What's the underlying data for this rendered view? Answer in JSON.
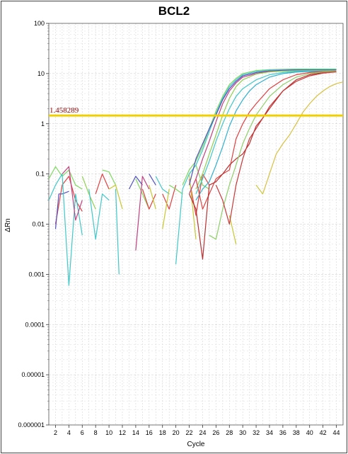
{
  "chart_data": {
    "type": "line",
    "title": "BCL2",
    "xlabel": "Cycle",
    "ylabel": "ΔRn",
    "y_scale": "log",
    "xlim": [
      1,
      45
    ],
    "ylim": [
      1e-06,
      100
    ],
    "x_ticks": [
      2,
      4,
      6,
      8,
      10,
      12,
      14,
      16,
      18,
      20,
      22,
      24,
      26,
      28,
      30,
      32,
      34,
      36,
      38,
      40,
      42,
      44
    ],
    "y_ticks": [
      {
        "value": 1e-06,
        "label": "0.000001"
      },
      {
        "value": 1e-05,
        "label": "0.00001"
      },
      {
        "value": 0.0001,
        "label": "0.0001"
      },
      {
        "value": 0.001,
        "label": "0.001"
      },
      {
        "value": 0.01,
        "label": "0.01"
      },
      {
        "value": 0.1,
        "label": "0.1"
      },
      {
        "value": 1,
        "label": "1"
      },
      {
        "value": 10,
        "label": "10"
      },
      {
        "value": 100,
        "label": "100"
      }
    ],
    "grid": true,
    "threshold": {
      "value": 1.458289,
      "label": "1.458289",
      "color": "#f0d000"
    },
    "series": [
      {
        "color": "#7fd860",
        "points": [
          [
            1,
            0.08
          ],
          [
            2,
            0.14
          ],
          [
            3,
            0.09
          ],
          [
            4,
            0.12
          ],
          [
            5,
            0.06
          ],
          [
            6,
            0.05
          ]
        ]
      },
      {
        "color": "#e04040",
        "points": [
          [
            2,
            0.01
          ],
          [
            3,
            0.06
          ],
          [
            4,
            0.09
          ],
          [
            5,
            0.03
          ],
          [
            6,
            0.018
          ]
        ]
      },
      {
        "color": "#5050c0",
        "points": [
          [
            2,
            0.008
          ],
          [
            2.5,
            0.04
          ],
          [
            3,
            0.04
          ],
          [
            4,
            0.045
          ]
        ]
      },
      {
        "color": "#40c8c8",
        "points": [
          [
            1,
            0.03
          ],
          [
            2,
            0.06
          ],
          [
            3,
            0.1
          ],
          [
            4,
            0.0006
          ],
          [
            5,
            0.04
          ],
          [
            6,
            0.006
          ]
        ]
      },
      {
        "color": "#c04080",
        "points": [
          [
            3,
            0.1
          ],
          [
            4,
            0.14
          ],
          [
            5,
            0.012
          ],
          [
            6,
            0.03
          ]
        ]
      },
      {
        "color": "#90d050",
        "points": [
          [
            6,
            0.09
          ],
          [
            7,
            0.04
          ],
          [
            8,
            0.02
          ]
        ]
      },
      {
        "color": "#40c8c8",
        "points": [
          [
            7,
            0.05
          ],
          [
            8,
            0.005
          ],
          [
            9,
            0.04
          ],
          [
            10,
            0.03
          ]
        ]
      },
      {
        "color": "#e04040",
        "points": [
          [
            8,
            0.04
          ],
          [
            9,
            0.1
          ],
          [
            10,
            0.05
          ]
        ]
      },
      {
        "color": "#7fd860",
        "points": [
          [
            9,
            0.12
          ],
          [
            10,
            0.11
          ],
          [
            11,
            0.06
          ]
        ]
      },
      {
        "color": "#c8c830",
        "points": [
          [
            10,
            0.05
          ],
          [
            11,
            0.06
          ],
          [
            12,
            0.02
          ]
        ]
      },
      {
        "color": "#40c8c8",
        "points": [
          [
            11,
            0.05
          ],
          [
            11.5,
            0.001
          ]
        ]
      },
      {
        "color": "#5050c0",
        "points": [
          [
            13,
            0.05
          ],
          [
            14,
            0.09
          ],
          [
            15,
            0.06
          ]
        ]
      },
      {
        "color": "#7fd860",
        "points": [
          [
            14,
            0.08
          ],
          [
            15,
            0.04
          ],
          [
            16,
            0.02
          ]
        ]
      },
      {
        "color": "#c04080",
        "points": [
          [
            14,
            0.003
          ],
          [
            15,
            0.09
          ],
          [
            16,
            0.05
          ]
        ]
      },
      {
        "color": "#e04040",
        "points": [
          [
            15,
            0.05
          ],
          [
            16,
            0.02
          ],
          [
            17,
            0.04
          ]
        ]
      },
      {
        "color": "#c8c830",
        "points": [
          [
            16,
            0.06
          ],
          [
            17,
            0.02
          ]
        ]
      },
      {
        "color": "#40c8c8",
        "points": [
          [
            17,
            0.09
          ],
          [
            18,
            0.05
          ],
          [
            19,
            0.04
          ]
        ]
      },
      {
        "color": "#5050c0",
        "points": [
          [
            16,
            0.1
          ],
          [
            17,
            0.06
          ]
        ]
      },
      {
        "color": "#e04040",
        "points": [
          [
            18,
            0.04
          ],
          [
            19,
            0.02
          ],
          [
            20,
            0.06
          ]
        ]
      },
      {
        "color": "#7fd860",
        "points": [
          [
            19,
            0.06
          ],
          [
            20,
            0.05
          ],
          [
            21,
            0.04
          ]
        ]
      },
      {
        "color": "#c8c830",
        "points": [
          [
            18,
            0.008
          ],
          [
            19,
            0.05
          ]
        ]
      },
      {
        "color": "#40c8c8",
        "points": [
          [
            20,
            0.0016
          ],
          [
            21,
            0.05
          ]
        ]
      },
      {
        "color": "#e04040",
        "points": [
          [
            22,
            0.08
          ],
          [
            23,
            0.015
          ],
          [
            24,
            0.1
          ],
          [
            25,
            0.06
          ]
        ]
      },
      {
        "color": "#c8c830",
        "points": [
          [
            22,
            0.1
          ],
          [
            23,
            0.005
          ]
        ]
      },
      {
        "color": "#7fd860",
        "points": [
          [
            22,
            0.1
          ],
          [
            23,
            0.15
          ],
          [
            24,
            0.06
          ],
          [
            25,
            0.05
          ]
        ]
      },
      {
        "color": "#c8c830",
        "points": [
          [
            28,
            0.015
          ],
          [
            29,
            0.004
          ]
        ]
      },
      {
        "color": "#c8c830",
        "points": [
          [
            32,
            0.06
          ],
          [
            33,
            0.04
          ]
        ]
      },
      {
        "color": "#7fd860",
        "points": [
          [
            21,
            0.06
          ],
          [
            22,
            0.12
          ],
          [
            23,
            0.18
          ],
          [
            24,
            0.35
          ],
          [
            25,
            0.8
          ],
          [
            26,
            1.8
          ],
          [
            27,
            3.5
          ],
          [
            28,
            6
          ],
          [
            29,
            8
          ],
          [
            30,
            10
          ],
          [
            32,
            11.5
          ],
          [
            34,
            12
          ],
          [
            36,
            12.2
          ],
          [
            38,
            12.3
          ],
          [
            40,
            12.3
          ],
          [
            42,
            12.3
          ],
          [
            44,
            12.3
          ]
        ]
      },
      {
        "color": "#40c8c8",
        "points": [
          [
            21,
            0.05
          ],
          [
            22,
            0.1
          ],
          [
            23,
            0.15
          ],
          [
            24,
            0.3
          ],
          [
            25,
            0.7
          ],
          [
            26,
            1.6
          ],
          [
            27,
            3.2
          ],
          [
            28,
            5.5
          ],
          [
            29,
            7.5
          ],
          [
            30,
            9.5
          ],
          [
            32,
            11
          ],
          [
            34,
            11.8
          ],
          [
            36,
            12
          ],
          [
            38,
            12.1
          ],
          [
            40,
            12.1
          ],
          [
            42,
            12.1
          ],
          [
            44,
            12.1
          ]
        ]
      },
      {
        "color": "#5050c0",
        "points": [
          [
            22,
            0.06
          ],
          [
            23,
            0.2
          ],
          [
            24,
            0.4
          ],
          [
            25,
            0.8
          ],
          [
            26,
            1.5
          ],
          [
            27,
            3
          ],
          [
            28,
            5
          ],
          [
            29,
            7
          ],
          [
            30,
            9
          ],
          [
            32,
            10.5
          ],
          [
            34,
            11.3
          ],
          [
            36,
            11.6
          ],
          [
            38,
            11.8
          ],
          [
            40,
            11.8
          ],
          [
            42,
            11.8
          ],
          [
            44,
            11.8
          ]
        ]
      },
      {
        "color": "#c04080",
        "points": [
          [
            22,
            0.04
          ],
          [
            23,
            0.08
          ],
          [
            24,
            0.2
          ],
          [
            25,
            0.45
          ],
          [
            26,
            1.1
          ],
          [
            27,
            2.5
          ],
          [
            28,
            4.5
          ],
          [
            29,
            6.5
          ],
          [
            30,
            8.5
          ],
          [
            32,
            10
          ],
          [
            34,
            11
          ],
          [
            36,
            11.3
          ],
          [
            38,
            11.4
          ],
          [
            40,
            11.5
          ],
          [
            42,
            11.5
          ],
          [
            44,
            11.5
          ]
        ]
      },
      {
        "color": "#90d050",
        "points": [
          [
            23,
            0.05
          ],
          [
            24,
            0.1
          ],
          [
            25,
            0.25
          ],
          [
            26,
            0.6
          ],
          [
            27,
            1.5
          ],
          [
            28,
            3.2
          ],
          [
            29,
            5.5
          ],
          [
            30,
            7.5
          ],
          [
            32,
            9.8
          ],
          [
            34,
            10.8
          ],
          [
            36,
            11.2
          ],
          [
            38,
            11.4
          ],
          [
            40,
            11.5
          ],
          [
            42,
            11.5
          ],
          [
            44,
            11.5
          ]
        ]
      },
      {
        "color": "#40c8c8",
        "points": [
          [
            23,
            0.04
          ],
          [
            24,
            0.08
          ],
          [
            25,
            0.18
          ],
          [
            26,
            0.45
          ],
          [
            27,
            1
          ],
          [
            28,
            2
          ],
          [
            29,
            3.5
          ],
          [
            30,
            5
          ],
          [
            32,
            7.5
          ],
          [
            34,
            9.5
          ],
          [
            36,
            10.5
          ],
          [
            38,
            11
          ],
          [
            40,
            11.2
          ],
          [
            42,
            11.2
          ],
          [
            44,
            11.2
          ]
        ]
      },
      {
        "color": "#30b0d0",
        "points": [
          [
            23,
            0.03
          ],
          [
            24,
            0.05
          ],
          [
            25,
            0.07
          ],
          [
            26,
            0.15
          ],
          [
            27,
            0.35
          ],
          [
            28,
            0.9
          ],
          [
            29,
            1.8
          ],
          [
            30,
            3
          ],
          [
            31,
            4.5
          ],
          [
            32,
            6
          ],
          [
            34,
            8.5
          ],
          [
            36,
            10
          ],
          [
            38,
            10.7
          ],
          [
            40,
            11
          ],
          [
            42,
            11.1
          ],
          [
            44,
            11.1
          ]
        ]
      },
      {
        "color": "#e04040",
        "points": [
          [
            23,
            0.08
          ],
          [
            24,
            0.02
          ],
          [
            25,
            0.04
          ],
          [
            26,
            0.08
          ],
          [
            27,
            0.1
          ],
          [
            28,
            0.12
          ],
          [
            29,
            0.5
          ],
          [
            30,
            1
          ],
          [
            31,
            1.7
          ],
          [
            32,
            2.5
          ],
          [
            34,
            5
          ],
          [
            36,
            7.5
          ],
          [
            38,
            9.5
          ],
          [
            40,
            10.5
          ],
          [
            42,
            11
          ],
          [
            44,
            11.2
          ]
        ]
      },
      {
        "color": "#b83030",
        "points": [
          [
            22,
            0.04
          ],
          [
            23,
            0.02
          ],
          [
            24,
            0.002
          ],
          [
            25,
            0.06
          ],
          [
            26,
            0.07
          ],
          [
            27,
            0.1
          ],
          [
            28,
            0.15
          ],
          [
            29,
            0.2
          ],
          [
            30,
            0.25
          ],
          [
            31,
            0.4
          ],
          [
            32,
            0.9
          ],
          [
            33,
            1.3
          ],
          [
            34,
            2
          ],
          [
            36,
            4.5
          ],
          [
            38,
            7.5
          ],
          [
            40,
            9.5
          ],
          [
            42,
            10.5
          ],
          [
            44,
            11
          ]
        ]
      },
      {
        "color": "#8dd068",
        "points": [
          [
            25,
            0.006
          ],
          [
            26,
            0.005
          ],
          [
            27,
            0.02
          ],
          [
            28,
            0.06
          ],
          [
            29,
            0.15
          ],
          [
            30,
            0.4
          ],
          [
            31,
            0.8
          ],
          [
            32,
            1.5
          ],
          [
            34,
            3.5
          ],
          [
            36,
            6
          ],
          [
            38,
            8.5
          ],
          [
            40,
            10
          ],
          [
            42,
            10.8
          ],
          [
            44,
            11
          ]
        ]
      },
      {
        "color": "#c83838",
        "points": [
          [
            26,
            0.06
          ],
          [
            27,
            0.03
          ],
          [
            28,
            0.01
          ],
          [
            29,
            0.06
          ],
          [
            30,
            0.2
          ],
          [
            31,
            0.5
          ],
          [
            32,
            0.8
          ],
          [
            33,
            1.3
          ],
          [
            34,
            2.2
          ],
          [
            36,
            4.5
          ],
          [
            38,
            7
          ],
          [
            40,
            9
          ],
          [
            42,
            10.2
          ],
          [
            44,
            10.8
          ]
        ]
      },
      {
        "color": "#d8c040",
        "points": [
          [
            33,
            0.04
          ],
          [
            34,
            0.1
          ],
          [
            35,
            0.25
          ],
          [
            36,
            0.4
          ],
          [
            37,
            0.6
          ],
          [
            38,
            1
          ],
          [
            39,
            1.7
          ],
          [
            40,
            2.5
          ],
          [
            41,
            3.5
          ],
          [
            42,
            4.5
          ],
          [
            43,
            5.5
          ],
          [
            44,
            6.3
          ],
          [
            45,
            6.8
          ]
        ]
      }
    ]
  }
}
